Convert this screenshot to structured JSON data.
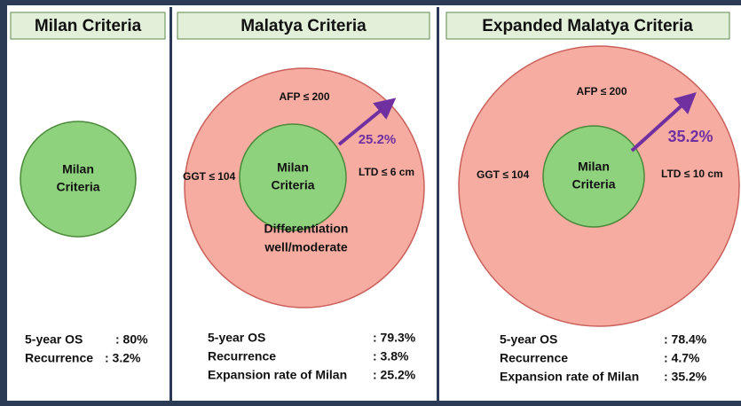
{
  "panels": [
    {
      "title": "Milan Criteria",
      "circle_label": [
        "Milan",
        "Criteria"
      ],
      "stats": [
        {
          "label": "5-year OS",
          "value": ": 80%"
        },
        {
          "label": "Recurrence",
          "value": ": 3.2%"
        }
      ]
    },
    {
      "title": "Malatya Criteria",
      "circle_label": [
        "Milan",
        "Criteria"
      ],
      "outer": {
        "top": "AFP ≤ 200",
        "left": "GGT ≤ 104",
        "right": "LTD ≤ 6 cm",
        "arrow": "25.2%",
        "bottom": [
          "Differentiation",
          "well/moderate"
        ]
      },
      "stats": [
        {
          "label": "5-year OS",
          "value": ": 79.3%"
        },
        {
          "label": "Recurrence",
          "value": ": 3.8%"
        },
        {
          "label": "Expansion rate of Milan",
          "value": ": 25.2%"
        }
      ]
    },
    {
      "title": "Expanded Malatya Criteria",
      "circle_label": [
        "Milan",
        "Criteria"
      ],
      "outer": {
        "top": "AFP ≤ 200",
        "left": "GGT ≤ 104",
        "right": "LTD ≤ 10 cm",
        "arrow": "35.2%"
      },
      "stats": [
        {
          "label": "5-year OS",
          "value": ": 78.4%"
        },
        {
          "label": "Recurrence",
          "value": ": 4.7%"
        },
        {
          "label": "Expansion rate of Milan",
          "value": ": 35.2%"
        }
      ]
    }
  ]
}
